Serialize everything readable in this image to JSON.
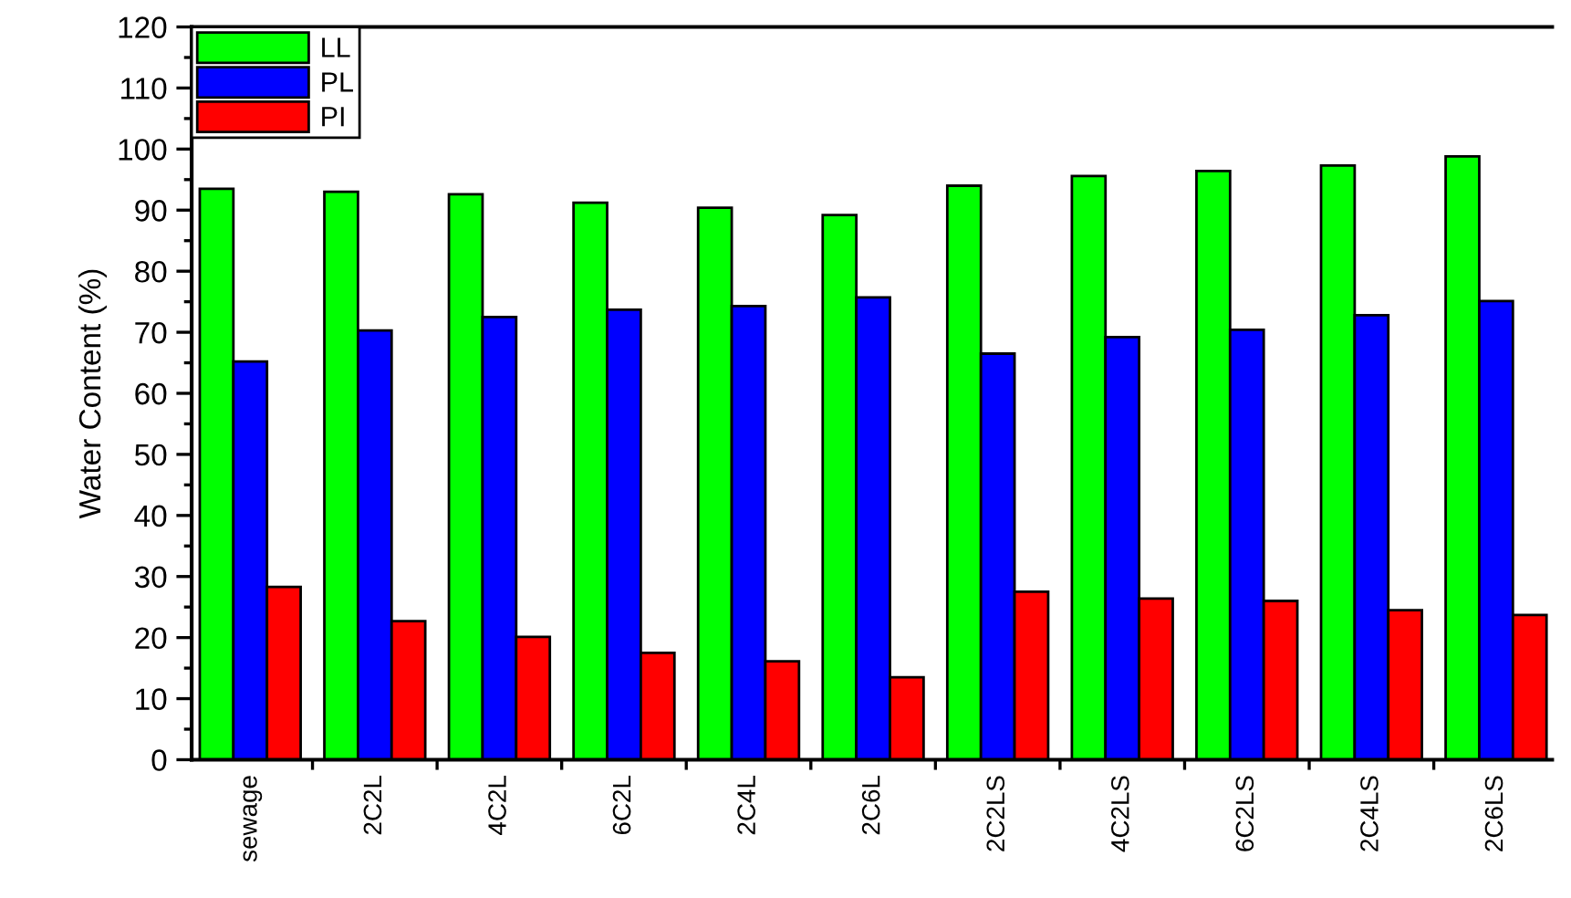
{
  "chart_data": {
    "type": "bar",
    "ylabel": "Water Content (%)",
    "categories": [
      "sewage",
      "2C2L",
      "4C2L",
      "6C2L",
      "2C4L",
      "2C6L",
      "2C2LS",
      "4C2LS",
      "6C2LS",
      "2C4LS",
      "2C6LS"
    ],
    "series": [
      {
        "name": "LL",
        "color": "#00ff00",
        "values": [
          93.5,
          93,
          92.6,
          91.2,
          90.4,
          89.2,
          94,
          95.6,
          96.4,
          97.3,
          98.8
        ]
      },
      {
        "name": "PL",
        "color": "#0000ff",
        "values": [
          65.2,
          70.3,
          72.5,
          73.7,
          74.3,
          75.7,
          66.5,
          69.2,
          70.4,
          72.8,
          75.1
        ]
      },
      {
        "name": "PI",
        "color": "#ff0000",
        "values": [
          28.3,
          22.7,
          20.1,
          17.5,
          16.1,
          13.5,
          27.5,
          26.4,
          26,
          24.5,
          23.7
        ]
      }
    ],
    "ylim": [
      0,
      120
    ],
    "yticks": [
      0,
      10,
      20,
      30,
      40,
      50,
      60,
      70,
      80,
      90,
      100,
      110,
      120
    ],
    "grid": false,
    "legend": "top left"
  }
}
